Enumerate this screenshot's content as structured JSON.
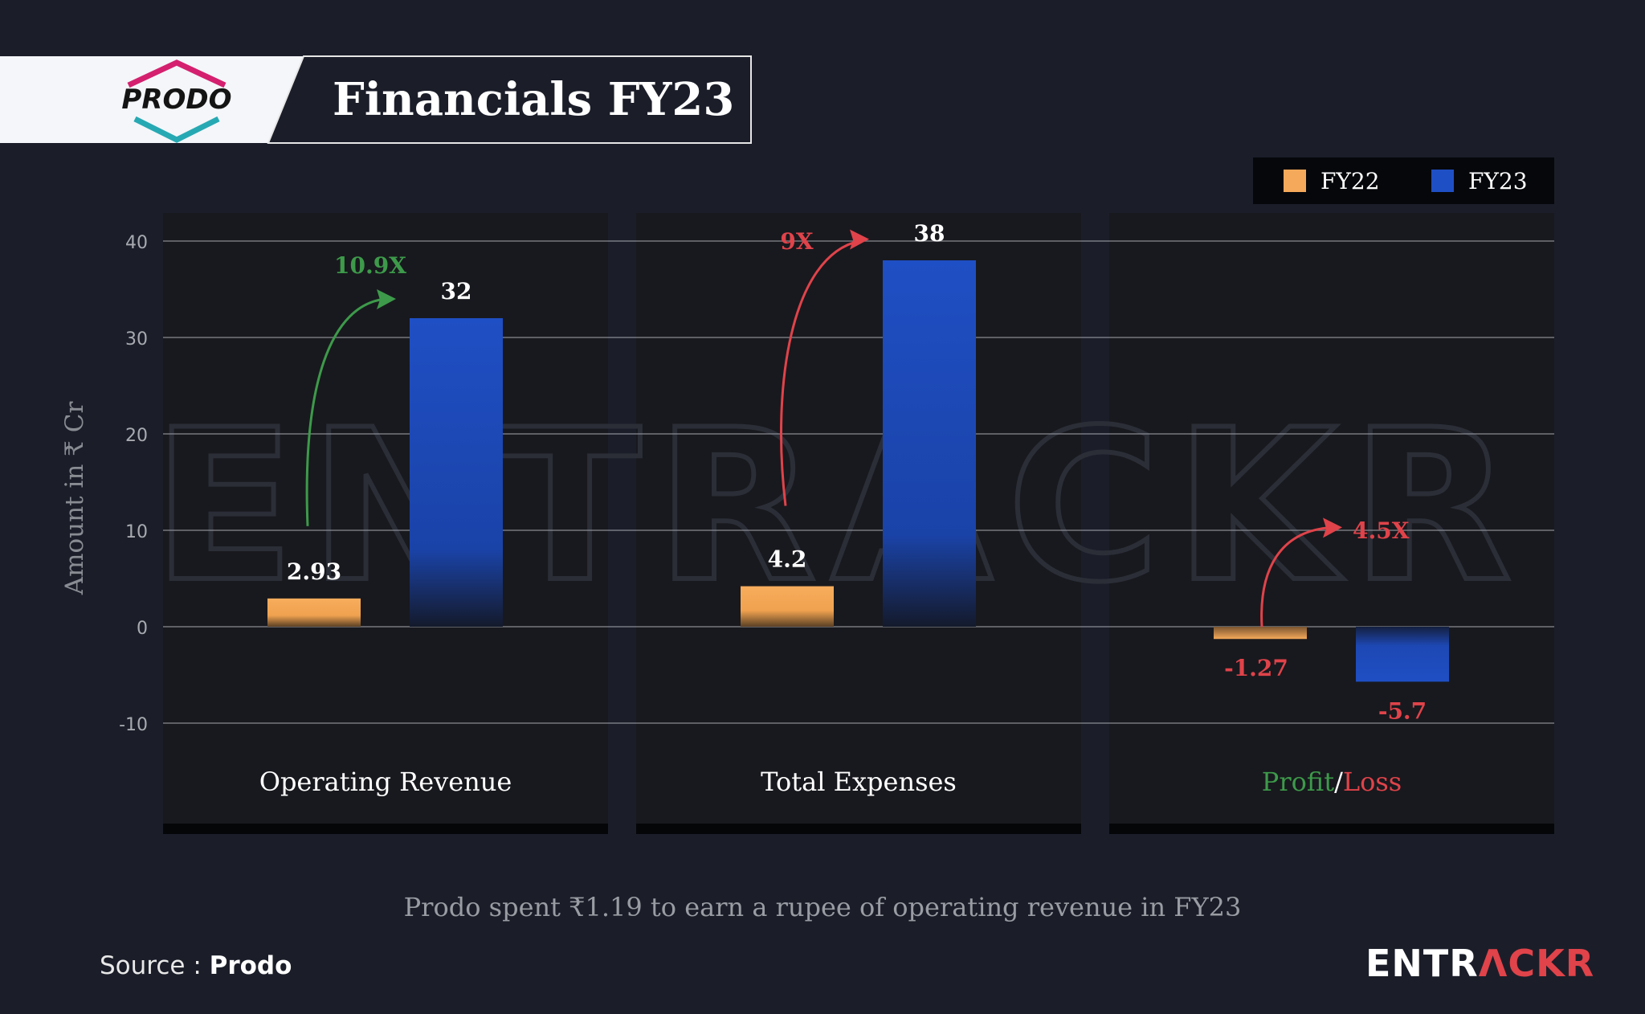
{
  "header": {
    "logo_text": "PRODO",
    "title": "Financials FY23"
  },
  "legend": {
    "items": [
      {
        "label": "FY22",
        "color": "#f5a95a"
      },
      {
        "label": "FY23",
        "color": "#1f4fc4"
      }
    ],
    "placement": "top-right"
  },
  "chart_data": {
    "type": "bar",
    "ylabel": "Amount in ₹ Cr",
    "ylim": [
      -10,
      40
    ],
    "yticks": [
      40,
      30,
      20,
      10,
      0,
      -10
    ],
    "grid": true,
    "series_names": [
      "FY22",
      "FY23"
    ],
    "panels": [
      {
        "category": "Operating Revenue",
        "values": [
          2.93,
          32
        ],
        "value_labels": [
          "2.93",
          "32"
        ],
        "growth_label": "10.9X",
        "growth_color": "#3d9a4a"
      },
      {
        "category": "Total Expenses",
        "values": [
          4.2,
          38
        ],
        "value_labels": [
          "4.2",
          "38"
        ],
        "growth_label": "9X",
        "growth_color": "#e0434a"
      },
      {
        "category_parts": [
          {
            "text": "Profit",
            "color": "#3d9a4a"
          },
          {
            "text": "/",
            "color": "#ffffff"
          },
          {
            "text": "Loss",
            "color": "#e0434a"
          }
        ],
        "values": [
          -1.27,
          -5.7
        ],
        "value_labels": [
          "-1.27",
          "-5.7"
        ],
        "growth_label": "4.5X",
        "growth_color": "#e0434a"
      }
    ]
  },
  "caption": "Prodo spent ₹1.19 to earn a rupee of operating revenue in FY23",
  "footer": {
    "source_prefix": "Source : ",
    "source_name": "Prodo",
    "brand_part1": "ENTR",
    "brand_part2": "ΛCKR"
  }
}
